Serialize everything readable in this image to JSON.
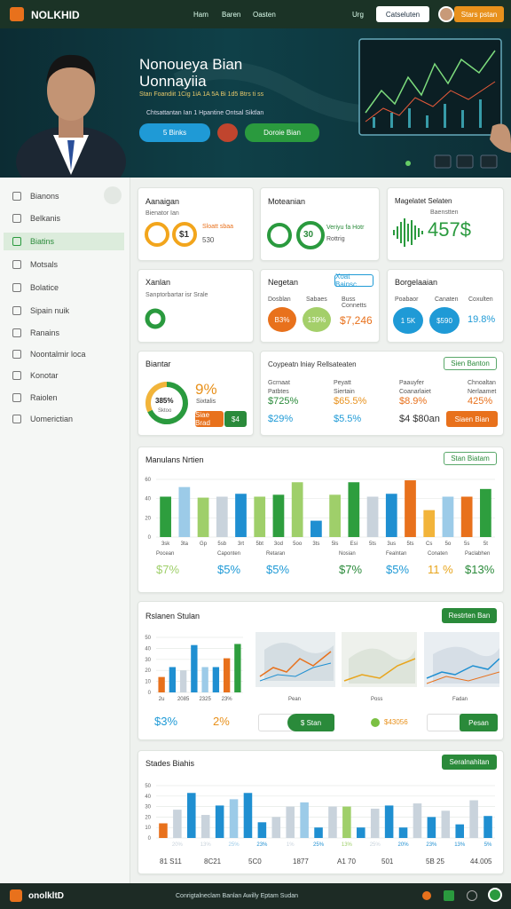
{
  "header": {
    "logo": "NOLKHID",
    "nav": [
      "Ham",
      "Baren",
      "Oasten"
    ],
    "lang": "Urg",
    "button": "Catseluten",
    "cta": "Stars pstan"
  },
  "hero": {
    "title": "Nonoueya Bian",
    "title2": "Uonnayiia",
    "subtitle": "Stan Foandiit 1Cig 1iA 1A 5A Bi 1d5 Btrs ti ss",
    "tagline": "Chtsattantan Ian 1 Hpantine Ontsal Siktlan",
    "buttons": [
      "5 Binks",
      "Doroie Bian"
    ]
  },
  "sidebar": [
    "Bianons",
    "Belkanis",
    "Biatins",
    "Motsals",
    "Bolatice",
    "Sipain nuik",
    "Ranains",
    "Noontalmir loca",
    "Konotar",
    "Raiolen",
    "Uomerictian"
  ],
  "cards": {
    "c1": {
      "title": "Aanaigan",
      "sub": "Bienator Ian",
      "value": "$1",
      "note": "Sloatt sbaa",
      "small": "530"
    },
    "c2": {
      "title": "Moteanian",
      "value": "30",
      "note": "Veriyu fa Hotr",
      "small": "Rottrig"
    },
    "c3": {
      "title": "Magelatet Selaten",
      "sub": "Baenstten",
      "value": "457$"
    },
    "c4": {
      "title": "Xanlan",
      "sub": "Sanptorbartar isr Srale"
    },
    "c5": {
      "title": "Negetan",
      "button": "Xoat Bainsc",
      "labels": [
        "Dosblan",
        "Sabaes",
        "Buss Connetts"
      ],
      "values": [
        "B3%",
        "139%",
        "$7,246"
      ]
    },
    "c6": {
      "title": "Borgelaaian",
      "labels": [
        "Poabaor",
        "Canaten",
        "Coxulten"
      ],
      "values": [
        "1 5K",
        "$590",
        "19.8%"
      ]
    },
    "c7": {
      "title": "Biantar",
      "ring": "385%",
      "ring_sub": "Sktoo",
      "value": "9%",
      "note": "Sixtalis",
      "buttons": [
        "Siae Brad",
        "$4"
      ]
    },
    "c8": {
      "title": "Coypeatn lniay Rellsateaten",
      "button": "Sien Banton",
      "cols": [
        [
          "Gcrnaat",
          "Patbtes",
          "$725%",
          "$29%"
        ],
        [
          "Peyatt",
          "Siertain",
          "$65.5%",
          "$5.5%"
        ],
        [
          "Paauyfer",
          "Coanarlaiet",
          "$8.9%",
          "$4 $80an"
        ],
        [
          "Chnoaltan",
          "Nerlaamet",
          "425%",
          "Siaen Bian"
        ]
      ]
    }
  },
  "panel1": {
    "title": "Manulans Nrtien",
    "button": "Stan Biatam",
    "stats": [
      [
        "Pocean",
        "$7%"
      ],
      [
        "Caponten",
        "$5%"
      ],
      [
        "Retaran",
        "$5%"
      ],
      [
        "Nosian",
        "$7%"
      ],
      [
        "Fealntan",
        "$5%"
      ],
      [
        "Conaten",
        "11 %"
      ],
      [
        "Paclabhen",
        "$13%"
      ]
    ]
  },
  "panel2": {
    "title": "Rslanen Stulan",
    "button": "Restrten Ban",
    "stats": [
      "$3%",
      "2%"
    ],
    "thumbs": [
      "Pean",
      "Poss",
      "Fadan"
    ],
    "buttons": [
      "$ Stan",
      "$43056",
      "Pesan"
    ]
  },
  "panel3": {
    "title": "Stades Biahis",
    "button": "Seralnahitan",
    "footer": [
      "81 S11",
      "8C21",
      "5C0",
      "1877",
      "A1 70",
      "501",
      "5B 25",
      "44.005"
    ]
  },
  "footer": {
    "logo": "onolkltD",
    "text": "Conrigtalneclam Banlan Awilly Eptam Sudan"
  },
  "charts": [
    {
      "type": "bar",
      "ylim": [
        0,
        60
      ],
      "yticks": [
        0,
        20,
        40,
        60
      ],
      "categories": [
        "3sk",
        "3ta",
        "Gp",
        "5sb",
        "3rt",
        "5bt",
        "3od",
        "5oo",
        "3ts",
        "5ls",
        "Esi",
        "5ts",
        "3us",
        "5ts",
        "Cs",
        "5o",
        "5s",
        "5t"
      ],
      "values": [
        42,
        52,
        41,
        42,
        45,
        42,
        44,
        57,
        17,
        44,
        57,
        42,
        45,
        59,
        28,
        42,
        42,
        50
      ],
      "colors": [
        "#2e9e3e",
        "#9ccbe8",
        "#9fcf6a",
        "#c9d3dc",
        "#1f8fd1",
        "#9fcf6a",
        "#2e9e3e",
        "#9fcf6a",
        "#1f8fd1",
        "#9fcf6a",
        "#2e9e3e",
        "#c9d3dc",
        "#1f8fd1",
        "#e8711c",
        "#f2b43a",
        "#9ccbe8",
        "#e8711c",
        "#2e9e3e"
      ]
    },
    {
      "type": "bar",
      "ylim": [
        0,
        50
      ],
      "yticks": [
        0,
        10,
        20,
        30,
        40,
        50
      ],
      "categories": [
        "2u",
        null,
        "2085",
        null,
        "2325",
        null,
        "23%",
        null
      ],
      "values": [
        14,
        23,
        20,
        43,
        23,
        23,
        31,
        44
      ],
      "colors": [
        "#e8711c",
        "#1f8fd1",
        "#c9d3dc",
        "#1f8fd1",
        "#9ccbe8",
        "#1f8fd1",
        "#e8711c",
        "#2e9e3e"
      ]
    },
    {
      "type": "bar",
      "ylim": [
        0,
        50
      ],
      "yticks": [
        0,
        10,
        20,
        30,
        40,
        50
      ],
      "categories": [
        null,
        "20%",
        null,
        "13%",
        null,
        "25%",
        null,
        "23%",
        null,
        "1%",
        null,
        "25%",
        null,
        "13%",
        null,
        "25%",
        null,
        "20%",
        null,
        "23%",
        null,
        "13%",
        null,
        "5%"
      ],
      "values": [
        14,
        27,
        43,
        22,
        31,
        37,
        43,
        15,
        20,
        30,
        34,
        10,
        30,
        30,
        10,
        28,
        31,
        10,
        33,
        20,
        26,
        13,
        36,
        21
      ],
      "colors": [
        "#e8711c",
        "#c9d3dc",
        "#1f8fd1",
        "#c9d3dc",
        "#1f8fd1",
        "#9ccbe8",
        "#1f8fd1",
        "#1f8fd1",
        "#c9d3dc",
        "#c9d3dc",
        "#9ccbe8",
        "#1f8fd1",
        "#c9d3dc",
        "#9fcf6a",
        "#1f8fd1",
        "#c9d3dc",
        "#1f8fd1",
        "#1f8fd1",
        "#c9d3dc",
        "#1f8fd1",
        "#c9d3dc",
        "#1f8fd1",
        "#c9d3dc",
        "#1f8fd1"
      ]
    }
  ]
}
